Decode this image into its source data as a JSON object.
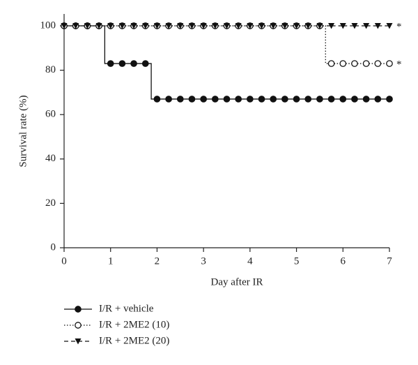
{
  "chart_data": {
    "type": "survival-step",
    "xlabel": "Day after IR",
    "ylabel": "Survival rate (%)",
    "x": [
      0,
      0.25,
      0.5,
      0.75,
      1,
      1.25,
      1.5,
      1.75,
      2,
      2.25,
      2.5,
      2.75,
      3,
      3.25,
      3.5,
      3.75,
      4,
      4.25,
      4.5,
      4.75,
      5,
      5.25,
      5.5,
      5.75,
      6,
      6.25,
      6.5,
      6.75,
      7
    ],
    "series": [
      {
        "name": "I/R + vehicle",
        "color": "#111111",
        "line": "solid",
        "marker": "circle-filled",
        "values": [
          100,
          100,
          100,
          100,
          83,
          83,
          83,
          83,
          67,
          67,
          67,
          67,
          67,
          67,
          67,
          67,
          67,
          67,
          67,
          67,
          67,
          67,
          67,
          67,
          67,
          67,
          67,
          67,
          67
        ]
      },
      {
        "name": "I/R + 2ME2 (10)",
        "color": "#111111",
        "line": "dotted",
        "marker": "circle-open",
        "annotation": "*",
        "values": [
          100,
          100,
          100,
          100,
          100,
          100,
          100,
          100,
          100,
          100,
          100,
          100,
          100,
          100,
          100,
          100,
          100,
          100,
          100,
          100,
          100,
          100,
          100,
          83,
          83,
          83,
          83,
          83,
          83
        ]
      },
      {
        "name": "I/R + 2ME2 (20)",
        "color": "#111111",
        "line": "dashed",
        "marker": "triangle-down",
        "annotation": "*",
        "values": [
          100,
          100,
          100,
          100,
          100,
          100,
          100,
          100,
          100,
          100,
          100,
          100,
          100,
          100,
          100,
          100,
          100,
          100,
          100,
          100,
          100,
          100,
          100,
          100,
          100,
          100,
          100,
          100,
          100
        ]
      }
    ],
    "xlim": [
      0,
      7
    ],
    "xticks": [
      0,
      1,
      2,
      3,
      4,
      5,
      6,
      7
    ],
    "ylim": [
      0,
      100
    ],
    "yticks": [
      0,
      20,
      40,
      60,
      80,
      100
    ],
    "grid": false,
    "legend": "bottom-left"
  }
}
